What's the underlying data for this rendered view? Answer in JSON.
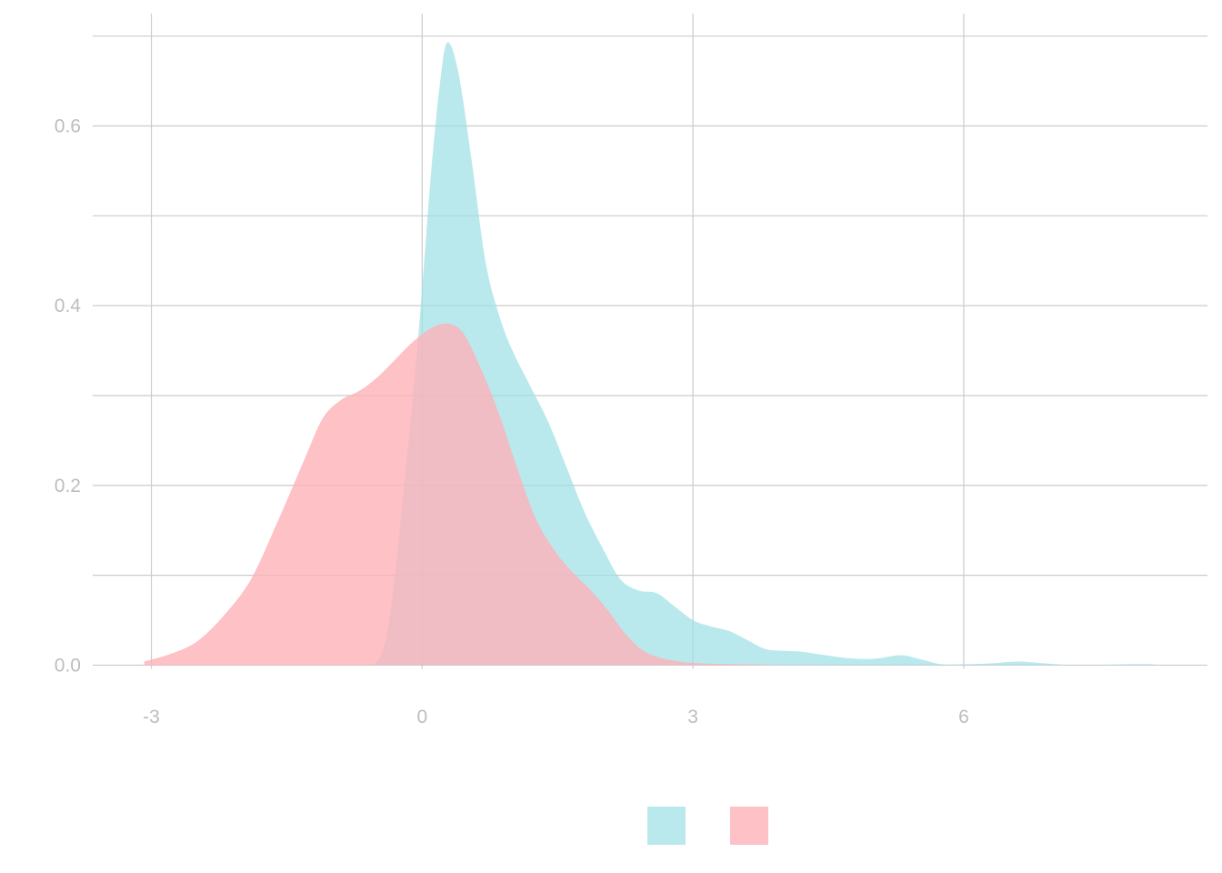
{
  "chart_data": {
    "type": "area",
    "title": "",
    "xlabel": "",
    "ylabel": "",
    "xlim": [
      -3.65,
      8.7
    ],
    "ylim": [
      -0.035,
      0.725
    ],
    "x_ticks": [
      -3,
      0,
      3,
      6
    ],
    "x_tick_labels": [
      "-3",
      "0",
      "3",
      "6"
    ],
    "y_ticks": [
      0.0,
      0.2,
      0.4,
      0.6
    ],
    "y_tick_labels": [
      "0.0",
      "0.2",
      "0.4",
      "0.6"
    ],
    "y_minor_ticks": [
      0.1,
      0.3,
      0.5,
      0.7
    ],
    "grid": true,
    "legend": {
      "placement": "bottom"
    },
    "series": [
      {
        "color": "#9CDFE6",
        "opacity": 0.7,
        "points": [
          [
            -0.6,
            0.0
          ],
          [
            -0.5,
            0.004
          ],
          [
            -0.4,
            0.03
          ],
          [
            -0.3,
            0.1
          ],
          [
            -0.2,
            0.2
          ],
          [
            -0.1,
            0.3
          ],
          [
            0.0,
            0.42
          ],
          [
            0.1,
            0.55
          ],
          [
            0.2,
            0.65
          ],
          [
            0.28,
            0.693
          ],
          [
            0.4,
            0.66
          ],
          [
            0.55,
            0.56
          ],
          [
            0.7,
            0.45
          ],
          [
            0.85,
            0.39
          ],
          [
            1.0,
            0.35
          ],
          [
            1.2,
            0.31
          ],
          [
            1.4,
            0.27
          ],
          [
            1.6,
            0.22
          ],
          [
            1.8,
            0.17
          ],
          [
            2.0,
            0.13
          ],
          [
            2.2,
            0.095
          ],
          [
            2.4,
            0.083
          ],
          [
            2.6,
            0.08
          ],
          [
            2.8,
            0.065
          ],
          [
            3.0,
            0.05
          ],
          [
            3.2,
            0.043
          ],
          [
            3.4,
            0.038
          ],
          [
            3.6,
            0.028
          ],
          [
            3.8,
            0.018
          ],
          [
            4.0,
            0.016
          ],
          [
            4.2,
            0.015
          ],
          [
            4.4,
            0.012
          ],
          [
            4.7,
            0.008
          ],
          [
            5.0,
            0.007
          ],
          [
            5.3,
            0.011
          ],
          [
            5.5,
            0.007
          ],
          [
            5.75,
            0.001
          ],
          [
            6.0,
            0.001
          ],
          [
            6.3,
            0.002
          ],
          [
            6.6,
            0.004
          ],
          [
            6.9,
            0.002
          ],
          [
            7.2,
            0.0
          ],
          [
            7.5,
            0.0
          ],
          [
            7.8,
            0.001
          ],
          [
            8.1,
            0.001
          ]
        ]
      },
      {
        "color": "#FCB2B8",
        "opacity": 0.8,
        "points": [
          [
            -3.08,
            0.004
          ],
          [
            -2.8,
            0.012
          ],
          [
            -2.5,
            0.026
          ],
          [
            -2.2,
            0.055
          ],
          [
            -1.9,
            0.095
          ],
          [
            -1.6,
            0.16
          ],
          [
            -1.3,
            0.23
          ],
          [
            -1.1,
            0.275
          ],
          [
            -0.9,
            0.295
          ],
          [
            -0.7,
            0.305
          ],
          [
            -0.5,
            0.32
          ],
          [
            -0.3,
            0.34
          ],
          [
            -0.1,
            0.36
          ],
          [
            0.1,
            0.375
          ],
          [
            0.28,
            0.38
          ],
          [
            0.45,
            0.37
          ],
          [
            0.65,
            0.33
          ],
          [
            0.85,
            0.28
          ],
          [
            1.05,
            0.22
          ],
          [
            1.25,
            0.165
          ],
          [
            1.45,
            0.13
          ],
          [
            1.65,
            0.105
          ],
          [
            1.85,
            0.085
          ],
          [
            2.05,
            0.062
          ],
          [
            2.25,
            0.035
          ],
          [
            2.45,
            0.016
          ],
          [
            2.65,
            0.008
          ],
          [
            2.85,
            0.004
          ],
          [
            3.1,
            0.002
          ],
          [
            3.5,
            0.001
          ],
          [
            4.0,
            0.0
          ],
          [
            4.5,
            0.0
          ]
        ]
      }
    ]
  }
}
